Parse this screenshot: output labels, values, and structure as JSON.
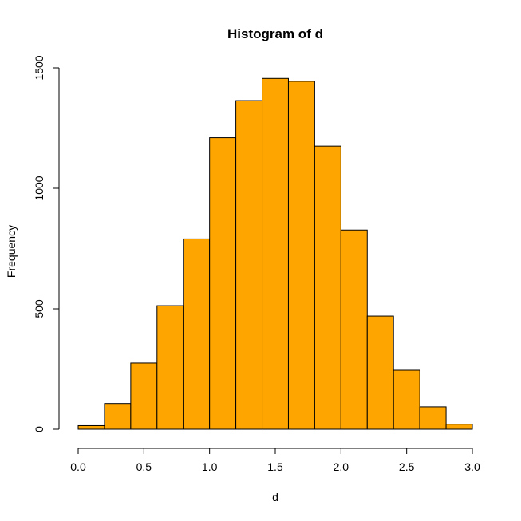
{
  "chart_data": {
    "type": "bar",
    "title": "Histogram of d",
    "xlabel": "d",
    "ylabel": "Frequency",
    "bar_color": "#FFA500",
    "bins": [
      {
        "x0": 0.0,
        "x1": 0.2,
        "count": 15
      },
      {
        "x0": 0.2,
        "x1": 0.4,
        "count": 107
      },
      {
        "x0": 0.4,
        "x1": 0.6,
        "count": 275
      },
      {
        "x0": 0.6,
        "x1": 0.8,
        "count": 513
      },
      {
        "x0": 0.8,
        "x1": 1.0,
        "count": 790
      },
      {
        "x0": 1.0,
        "x1": 1.2,
        "count": 1210
      },
      {
        "x0": 1.2,
        "x1": 1.4,
        "count": 1364
      },
      {
        "x0": 1.4,
        "x1": 1.6,
        "count": 1456
      },
      {
        "x0": 1.6,
        "x1": 1.8,
        "count": 1444
      },
      {
        "x0": 1.8,
        "x1": 2.0,
        "count": 1175
      },
      {
        "x0": 2.0,
        "x1": 2.2,
        "count": 827
      },
      {
        "x0": 2.2,
        "x1": 2.4,
        "count": 470
      },
      {
        "x0": 2.4,
        "x1": 2.6,
        "count": 245
      },
      {
        "x0": 2.6,
        "x1": 2.8,
        "count": 93
      },
      {
        "x0": 2.8,
        "x1": 3.0,
        "count": 21
      }
    ],
    "xlim": [
      0,
      3
    ],
    "ylim": [
      0,
      1500
    ],
    "xticks": [
      0.0,
      0.5,
      1.0,
      1.5,
      2.0,
      2.5,
      3.0
    ],
    "xtick_labels": [
      "0.0",
      "0.5",
      "1.0",
      "1.5",
      "2.0",
      "2.5",
      "3.0"
    ],
    "yticks": [
      0,
      500,
      1000,
      1500
    ],
    "ytick_labels": [
      "0",
      "500",
      "1000",
      "1500"
    ],
    "grid": false,
    "legend": "none"
  }
}
